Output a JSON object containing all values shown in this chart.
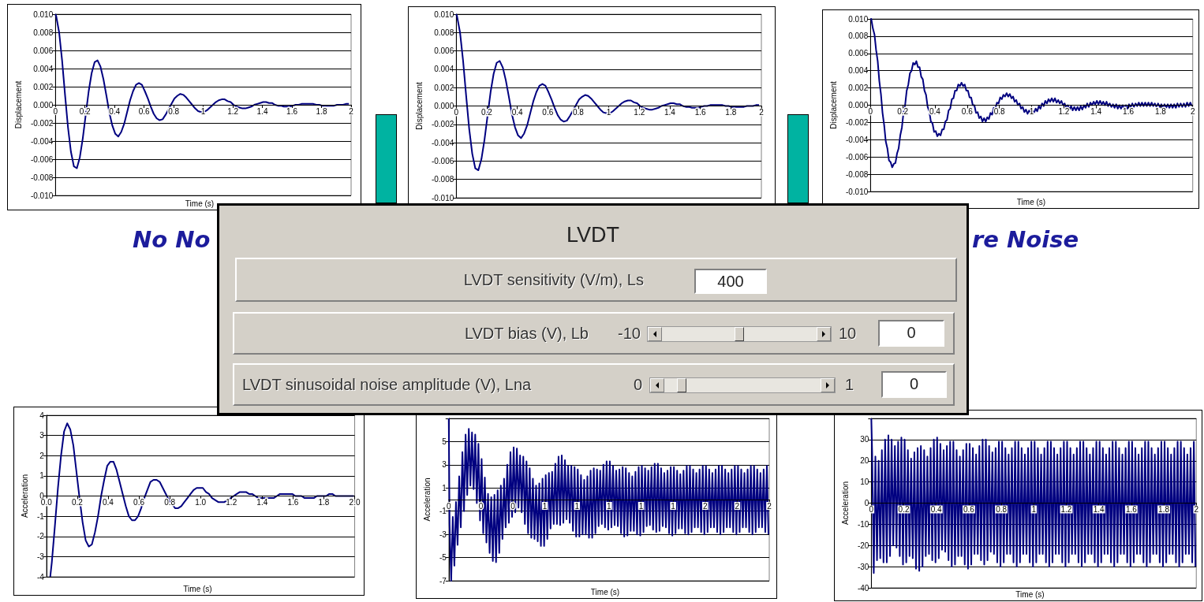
{
  "chart_data": [
    {
      "type": "line",
      "ylabel": "Displacement",
      "xlabel": "Time (s)",
      "annotations": [
        "No No"
      ],
      "grid": "y",
      "xlim": [
        0,
        2
      ],
      "ylim": [
        -0.01,
        0.01
      ],
      "xticks": [
        0,
        0.2,
        0.4,
        0.6,
        0.8,
        1,
        1.2,
        1.4,
        1.6,
        1.8,
        2
      ],
      "yticks": [
        {
          "value": -0.01,
          "label": "-0.010"
        },
        {
          "value": -0.008,
          "label": "-0.008"
        },
        {
          "value": -0.006,
          "label": "-0.006"
        },
        {
          "value": -0.004,
          "label": "-0.004"
        },
        {
          "value": -0.002,
          "label": "-0.002"
        },
        {
          "value": 0,
          "label": "0.000"
        },
        {
          "value": 0.002,
          "label": "0.002"
        },
        {
          "value": 0.004,
          "label": "0.004"
        },
        {
          "value": 0.006,
          "label": "0.006"
        },
        {
          "value": 0.008,
          "label": "0.008"
        },
        {
          "value": 0.01,
          "label": "0.010"
        }
      ],
      "x": [
        0,
        0.005,
        0.025,
        0.045,
        0.065,
        0.085,
        0.105,
        0.125,
        0.145,
        0.165,
        0.185,
        0.205,
        0.225,
        0.245,
        0.265,
        0.285,
        0.305,
        0.325,
        0.345,
        0.365,
        0.385,
        0.405,
        0.425,
        0.445,
        0.465,
        0.485,
        0.505,
        0.525,
        0.545,
        0.565,
        0.585,
        0.605,
        0.625,
        0.645,
        0.665,
        0.685,
        0.705,
        0.725,
        0.745,
        0.765,
        0.785,
        0.805,
        0.825,
        0.845,
        0.865,
        0.885,
        0.905,
        0.925,
        0.945,
        0.965,
        0.985,
        1.005,
        1.025,
        1.045,
        1.065,
        1.085,
        1.105,
        1.125,
        1.145,
        1.165,
        1.185,
        1.205,
        1.225,
        1.245,
        1.265,
        1.285,
        1.305,
        1.325,
        1.345,
        1.365,
        1.385,
        1.405,
        1.425,
        1.445,
        1.465,
        1.485,
        1.505,
        1.525,
        1.545,
        1.565,
        1.585,
        1.605,
        1.625,
        1.645,
        1.665,
        1.685,
        1.705,
        1.725,
        1.745,
        1.765,
        1.785,
        1.805,
        1.825,
        1.845,
        1.865,
        1.885,
        1.905,
        1.925,
        1.945,
        1.965,
        1.985
      ],
      "series": [
        {
          "color": "#000080",
          "values": [
            0.01,
            0.0098,
            0.008,
            0.0049,
            0.0011,
            -0.0025,
            -0.0052,
            -0.0068,
            -0.007,
            -0.0058,
            -0.0037,
            -0.0011,
            0.0015,
            0.0035,
            0.0047,
            0.0049,
            0.0042,
            0.0028,
            0.001,
            -0.0009,
            -0.0023,
            -0.0032,
            -0.0035,
            -0.003,
            -0.0021,
            -0.0008,
            0.0005,
            0.0015,
            0.0022,
            0.0024,
            0.0022,
            0.0015,
            0.0007,
            -0.0002,
            -0.001,
            -0.0015,
            -0.0017,
            -0.0016,
            -0.0011,
            -0.0005,
            0.0001,
            0.0007,
            0.001,
            0.0012,
            0.0011,
            0.0008,
            0.0004,
            0,
            -0.0004,
            -0.0007,
            -0.0008,
            -0.0008,
            -0.0006,
            -0.0003,
            0,
            0.0003,
            0.0005,
            0.0006,
            0.0006,
            0.0004,
            0.0003,
            0,
            -0.0002,
            -0.0003,
            -0.0004,
            -0.0004,
            -0.0003,
            -0.0002,
            0,
            0.0001,
            0.0002,
            0.0003,
            0.0003,
            0.0002,
            0.0002,
            0,
            -0.0001,
            -0.0001,
            -0.0002,
            -0.0002,
            -0.0002,
            -0.0001,
            0,
            0,
            0.0001,
            0.0001,
            0.0001,
            0.0001,
            0.0001,
            0,
            0,
            -0.0001,
            -0.0001,
            -0.0001,
            -0.0001,
            -0.0001,
            0,
            0,
            0,
            0.0001,
            0.0001
          ]
        }
      ]
    },
    {
      "type": "line",
      "ylabel": "Displacement",
      "grid": "y",
      "xlim": [
        0,
        2
      ],
      "ylim": [
        -0.01,
        0.01
      ],
      "xticks": [
        0,
        0.2,
        0.4,
        0.6,
        0.8,
        1,
        1.2,
        1.4,
        1.6,
        1.8,
        2
      ],
      "yticks": [
        {
          "value": -0.01,
          "label": "-0.010"
        },
        {
          "value": -0.008,
          "label": "-0.008"
        },
        {
          "value": -0.006,
          "label": "-0.006"
        },
        {
          "value": -0.004,
          "label": "-0.004"
        },
        {
          "value": -0.002,
          "label": "-0.002"
        },
        {
          "value": 0,
          "label": "0.000"
        },
        {
          "value": 0.002,
          "label": "0.002"
        },
        {
          "value": 0.004,
          "label": "0.004"
        },
        {
          "value": 0.006,
          "label": "0.006"
        },
        {
          "value": 0.008,
          "label": "0.008"
        },
        {
          "value": 0.01,
          "label": "0.010"
        }
      ],
      "x": [
        0,
        0.005,
        0.025,
        0.045,
        0.065,
        0.085,
        0.105,
        0.125,
        0.145,
        0.165,
        0.185,
        0.205,
        0.225,
        0.245,
        0.265,
        0.285,
        0.305,
        0.325,
        0.345,
        0.365,
        0.385,
        0.405,
        0.425,
        0.445,
        0.465,
        0.485,
        0.505,
        0.525,
        0.545,
        0.565,
        0.585,
        0.605,
        0.625,
        0.645,
        0.665,
        0.685,
        0.705,
        0.725,
        0.745,
        0.765,
        0.785,
        0.805,
        0.825,
        0.845,
        0.865,
        0.885,
        0.905,
        0.925,
        0.945,
        0.965,
        0.985,
        1.005,
        1.025,
        1.045,
        1.065,
        1.085,
        1.105,
        1.125,
        1.145,
        1.165,
        1.185,
        1.205,
        1.225,
        1.245,
        1.265,
        1.285,
        1.305,
        1.325,
        1.345,
        1.365,
        1.385,
        1.405,
        1.425,
        1.445,
        1.465,
        1.485,
        1.505,
        1.525,
        1.545,
        1.565,
        1.585,
        1.605,
        1.625,
        1.645,
        1.665,
        1.685,
        1.705,
        1.725,
        1.745,
        1.765,
        1.785,
        1.805,
        1.825,
        1.845,
        1.865,
        1.885,
        1.905,
        1.925,
        1.945,
        1.965,
        1.985
      ],
      "series": [
        {
          "color": "#000080",
          "values": [
            0.01,
            0.0098,
            0.008,
            0.0049,
            0.0011,
            -0.0025,
            -0.0052,
            -0.0068,
            -0.007,
            -0.0058,
            -0.0037,
            -0.0011,
            0.0015,
            0.0035,
            0.0047,
            0.0049,
            0.0042,
            0.0028,
            0.001,
            -0.0009,
            -0.0023,
            -0.0032,
            -0.0035,
            -0.003,
            -0.0021,
            -0.0008,
            0.0005,
            0.0015,
            0.0022,
            0.0024,
            0.0022,
            0.0015,
            0.0007,
            -0.0002,
            -0.001,
            -0.0015,
            -0.0017,
            -0.0016,
            -0.0011,
            -0.0005,
            0.0001,
            0.0007,
            0.001,
            0.0012,
            0.0011,
            0.0008,
            0.0004,
            0,
            -0.0004,
            -0.0007,
            -0.0008,
            -0.0008,
            -0.0006,
            -0.0003,
            0,
            0.0003,
            0.0005,
            0.0006,
            0.0006,
            0.0004,
            0.0003,
            0,
            -0.0002,
            -0.0003,
            -0.0004,
            -0.0004,
            -0.0003,
            -0.0002,
            0,
            0.0001,
            0.0002,
            0.0003,
            0.0003,
            0.0002,
            0.0002,
            0,
            -0.0001,
            -0.0001,
            -0.0002,
            -0.0002,
            -0.0002,
            -0.0001,
            0,
            0,
            0.0001,
            0.0001,
            0.0001,
            0.0001,
            0.0001,
            0,
            0,
            -0.0001,
            -0.0001,
            -0.0001,
            -0.0001,
            -0.0001,
            0,
            0,
            0,
            0.0001,
            0.0001
          ]
        }
      ]
    },
    {
      "type": "line",
      "ylabel": "Displacement",
      "xlabel": "Time (s)",
      "annotations": [
        "re Noise"
      ],
      "grid": "y",
      "xlim": [
        0,
        2
      ],
      "ylim": [
        -0.01,
        0.01
      ],
      "xticks": [
        0,
        0.2,
        0.4,
        0.6,
        0.8,
        1,
        1.2,
        1.4,
        1.6,
        1.8,
        2
      ],
      "yticks": [
        {
          "value": -0.01,
          "label": "-0.010"
        },
        {
          "value": -0.008,
          "label": "-0.008"
        },
        {
          "value": -0.006,
          "label": "-0.006"
        },
        {
          "value": -0.004,
          "label": "-0.004"
        },
        {
          "value": -0.002,
          "label": "-0.002"
        },
        {
          "value": 0,
          "label": "0.000"
        },
        {
          "value": 0.002,
          "label": "0.002"
        },
        {
          "value": 0.004,
          "label": "0.004"
        },
        {
          "value": 0.006,
          "label": "0.006"
        },
        {
          "value": 0.008,
          "label": "0.008"
        },
        {
          "value": 0.01,
          "label": "0.010"
        }
      ],
      "x": [
        0,
        0.005,
        0.015,
        0.025,
        0.035,
        0.045,
        0.055,
        0.065,
        0.075,
        0.085,
        0.095,
        0.105,
        0.115,
        0.125,
        0.135,
        0.145,
        0.155,
        0.165,
        0.175,
        0.185,
        0.195,
        0.205,
        0.215,
        0.225,
        0.235,
        0.245,
        0.255,
        0.265,
        0.275,
        0.285,
        0.295,
        0.305,
        0.315,
        0.325,
        0.335,
        0.345,
        0.355,
        0.365,
        0.375,
        0.385,
        0.395,
        0.405,
        0.415,
        0.425,
        0.435,
        0.445,
        0.455,
        0.465,
        0.475,
        0.485,
        0.495,
        0.505,
        0.515,
        0.525,
        0.535,
        0.545,
        0.555,
        0.565,
        0.575,
        0.585,
        0.595,
        0.605,
        0.615,
        0.625,
        0.635,
        0.645,
        0.655,
        0.665,
        0.675,
        0.685,
        0.695,
        0.705,
        0.715,
        0.725,
        0.735,
        0.745,
        0.755,
        0.765,
        0.775,
        0.785,
        0.795,
        0.805,
        0.815,
        0.825,
        0.835,
        0.845,
        0.855,
        0.865,
        0.875,
        0.885,
        0.895,
        0.905,
        0.915,
        0.925,
        0.935,
        0.945,
        0.955,
        0.965,
        0.975,
        0.985,
        0.995,
        1.005,
        1.015,
        1.025,
        1.035,
        1.045,
        1.055,
        1.065,
        1.075,
        1.085,
        1.095,
        1.105,
        1.115,
        1.125,
        1.135,
        1.145,
        1.155,
        1.165,
        1.175,
        1.185,
        1.195,
        1.205,
        1.215,
        1.225,
        1.235,
        1.245,
        1.255,
        1.265,
        1.275,
        1.285,
        1.295,
        1.305,
        1.315,
        1.325,
        1.335,
        1.345,
        1.355,
        1.365,
        1.375,
        1.385,
        1.395,
        1.405,
        1.415,
        1.425,
        1.435,
        1.445,
        1.455,
        1.465,
        1.475,
        1.485,
        1.495,
        1.505,
        1.515,
        1.525,
        1.535,
        1.545,
        1.555,
        1.565,
        1.575,
        1.585,
        1.595,
        1.605,
        1.615,
        1.625,
        1.635,
        1.645,
        1.655,
        1.665,
        1.675,
        1.685,
        1.695,
        1.705,
        1.715,
        1.725,
        1.735,
        1.745,
        1.755,
        1.765,
        1.775,
        1.785,
        1.795,
        1.805,
        1.815,
        1.825,
        1.835,
        1.845,
        1.855,
        1.865,
        1.875,
        1.885,
        1.895,
        1.905,
        1.915,
        1.925,
        1.935,
        1.945,
        1.955,
        1.965,
        1.975,
        1.985,
        1.995
      ],
      "series": [
        {
          "color": "#000080",
          "values": [
            0.01,
            0.01,
            0.0089,
            0.0082,
            0.0064,
            0.0051,
            0.0028,
            0.0013,
            -0.0009,
            -0.0023,
            -0.0042,
            -0.005,
            -0.0064,
            -0.0066,
            -0.0072,
            -0.0068,
            -0.0067,
            -0.0056,
            -0.005,
            -0.0035,
            -0.0026,
            -0.0009,
            0,
            0.0017,
            0.0024,
            0.0037,
            0.004,
            0.0049,
            0.0047,
            0.0051,
            0.0044,
            0.0044,
            0.0033,
            0.003,
            0.0017,
            0.0012,
            -0.0002,
            -0.0007,
            -0.0019,
            -0.0021,
            -0.0031,
            -0.003,
            -0.0036,
            -0.0033,
            -0.0035,
            -0.0028,
            -0.0028,
            -0.0019,
            -0.0017,
            -0.0006,
            -0.0004,
            0.0007,
            0.0008,
            0.0017,
            0.0017,
            0.0024,
            0.0022,
            0.0026,
            0.0022,
            0.0024,
            0.0017,
            0.0017,
            0.0009,
            0.0009,
            0,
            0,
            -0.0009,
            -0.0008,
            -0.0015,
            -0.0013,
            -0.0019,
            -0.0015,
            -0.0019,
            -0.0014,
            -0.0016,
            -0.0009,
            -0.0011,
            -0.0003,
            -0.0004,
            0.0003,
            0.0002,
            0.0009,
            0.0007,
            0.0012,
            0.001,
            0.0014,
            0.001,
            0.0013,
            0.0008,
            0.001,
            0.0004,
            0.0006,
            0,
            0.0002,
            -0.0004,
            -0.0002,
            -0.0008,
            -0.0005,
            -0.001,
            -0.0006,
            -0.001,
            -0.0006,
            -0.0009,
            -0.0004,
            -0.0007,
            -0.0001,
            -0.0004,
            0.0002,
            -0.0001,
            0.0005,
            0.0002,
            0.0007,
            0.0004,
            0.0008,
            0.0004,
            0.0008,
            0.0003,
            0.0006,
            0.0002,
            0.0005,
            0,
            0.0002,
            -0.0003,
            0,
            -0.0005,
            -0.0001,
            -0.0006,
            -0.0002,
            -0.0006,
            -0.0002,
            -0.0006,
            -0.0001,
            -0.0005,
            0,
            -0.0003,
            0.0002,
            -0.0002,
            0.0003,
            0,
            0.0004,
            0.0001,
            0.0005,
            0.0001,
            0.0005,
            0.0001,
            0.0004,
            0,
            0.0004,
            -0.0001,
            0.0002,
            -0.0002,
            0.0001,
            -0.0003,
            0.0001,
            -0.0004,
            0,
            -0.0004,
            0,
            -0.0004,
            0,
            -0.0004,
            0.0001,
            -0.0003,
            0.0002,
            -0.0002,
            0.0002,
            -0.0001,
            0.0003,
            -0.0001,
            0.0003,
            -0.0001,
            0.0003,
            -0.0001,
            0.0003,
            -0.0001,
            0.0003,
            -0.0001,
            0.0002,
            -0.0002,
            0.0002,
            -0.0002,
            0.0001,
            -0.0003,
            0.0001,
            -0.0003,
            0.0001,
            -0.0003,
            0.0001,
            -0.0003,
            0.0001,
            -0.0003,
            0.0002,
            -0.0002,
            0.0002,
            -0.0002,
            0.0002,
            -0.0002,
            0.0003,
            -0.0001,
            0.0003,
            -0.0001
          ]
        }
      ]
    },
    {
      "type": "other",
      "title": "LVDT",
      "annotations": [
        "LVDT sensitivity (V/m), Ls",
        "400",
        "LVDT bias (V), Lb",
        "-10",
        "10",
        "0",
        "LVDT sinusoidal noise amplitude (V), Lna",
        "0",
        "1",
        "0"
      ]
    },
    {
      "type": "line",
      "ylabel": "Acceleration",
      "xlabel": "Time (s)",
      "grid": "y",
      "xlim": [
        0,
        2
      ],
      "ylim": [
        -4,
        4
      ],
      "xticks": [
        {
          "value": 0,
          "label": "0.0"
        },
        {
          "value": 0.2,
          "label": "0.2"
        },
        {
          "value": 0.4,
          "label": "0.4"
        },
        {
          "value": 0.6,
          "label": "0.6"
        },
        {
          "value": 0.8,
          "label": "0.8"
        },
        {
          "value": 1,
          "label": "1.0"
        },
        {
          "value": 1.2,
          "label": "1.2"
        },
        {
          "value": 1.4,
          "label": "1.4"
        },
        {
          "value": 1.6,
          "label": "1.6"
        },
        {
          "value": 1.8,
          "label": "1.8"
        },
        {
          "value": 2,
          "label": "2.0"
        }
      ],
      "yticks": [
        -4,
        -3,
        -2,
        -1,
        0,
        1,
        2,
        3,
        4
      ],
      "x": [
        0.025,
        0.035,
        0.055,
        0.075,
        0.095,
        0.115,
        0.135,
        0.155,
        0.175,
        0.195,
        0.215,
        0.235,
        0.255,
        0.275,
        0.295,
        0.315,
        0.335,
        0.355,
        0.375,
        0.395,
        0.415,
        0.435,
        0.455,
        0.475,
        0.495,
        0.515,
        0.535,
        0.555,
        0.575,
        0.595,
        0.615,
        0.635,
        0.655,
        0.675,
        0.695,
        0.715,
        0.735,
        0.755,
        0.775,
        0.795,
        0.815,
        0.835,
        0.855,
        0.875,
        0.895,
        0.915,
        0.935,
        0.955,
        0.975,
        0.995,
        1.015,
        1.035,
        1.055,
        1.075,
        1.095,
        1.115,
        1.135,
        1.155,
        1.175,
        1.195,
        1.215,
        1.235,
        1.255,
        1.275,
        1.295,
        1.315,
        1.335,
        1.355,
        1.375,
        1.395,
        1.415,
        1.435,
        1.455,
        1.475,
        1.495,
        1.515,
        1.535,
        1.555,
        1.575,
        1.595,
        1.615,
        1.635,
        1.655,
        1.675,
        1.695,
        1.715,
        1.735,
        1.755,
        1.775,
        1.795,
        1.815,
        1.835,
        1.855,
        1.875,
        1.895,
        1.915,
        1.935,
        1.955,
        1.975,
        1.995
      ],
      "series": [
        {
          "color": "#000080",
          "values": [
            -4,
            -3.3,
            -1.5,
            0.4,
            2.0,
            3.2,
            3.6,
            3.3,
            2.5,
            1.2,
            -0.1,
            -1.3,
            -2.2,
            -2.5,
            -2.4,
            -1.8,
            -1.0,
            0.0,
            0.8,
            1.5,
            1.7,
            1.7,
            1.3,
            0.7,
            0.1,
            -0.5,
            -1.0,
            -1.2,
            -1.2,
            -1.0,
            -0.6,
            -0.1,
            0.3,
            0.7,
            0.8,
            0.8,
            0.7,
            0.4,
            0.1,
            -0.2,
            -0.4,
            -0.6,
            -0.6,
            -0.5,
            -0.3,
            -0.1,
            0.1,
            0.3,
            0.4,
            0.4,
            0.4,
            0.2,
            0.1,
            -0.1,
            -0.2,
            -0.3,
            -0.3,
            -0.3,
            -0.2,
            -0.1,
            0.0,
            0.1,
            0.2,
            0.2,
            0.2,
            0.1,
            0.1,
            0.0,
            -0.1,
            -0.1,
            -0.1,
            -0.1,
            -0.1,
            -0.1,
            0.0,
            0.1,
            0.1,
            0.1,
            0.1,
            0.1,
            0.0,
            0.0,
            0.0,
            -0.1,
            -0.1,
            -0.1,
            -0.1,
            0.0,
            0.0,
            0.0,
            0.0,
            0.1,
            0.1,
            0.0,
            0.0,
            0.0,
            0.0,
            0.0,
            0.0,
            0.0
          ]
        }
      ]
    },
    {
      "type": "line",
      "ylabel": "Acceleration",
      "xlabel": "Time (s)",
      "grid": "y",
      "xlim": [
        0,
        2
      ],
      "ylim": [
        -7,
        7
      ],
      "xticks": [
        {
          "value": 0,
          "label": "0"
        },
        {
          "value": 0.2,
          "label": "0"
        },
        {
          "value": 0.4,
          "label": "0"
        },
        {
          "value": 0.6,
          "label": "1"
        },
        {
          "value": 0.8,
          "label": "1"
        },
        {
          "value": 1,
          "label": "1"
        },
        {
          "value": 1.2,
          "label": "1"
        },
        {
          "value": 1.4,
          "label": "1"
        },
        {
          "value": 1.6,
          "label": "2"
        },
        {
          "value": 1.8,
          "label": "2"
        },
        {
          "value": 2,
          "label": "2"
        }
      ],
      "yticks": [
        -7,
        -5,
        -3,
        -1,
        1,
        3,
        5,
        {
          "value": 7,
          "label": null
        }
      ],
      "x": [
        0,
        0.005,
        0.015,
        0.025,
        0.035,
        0.045,
        0.055,
        0.065,
        0.075,
        0.085,
        0.095,
        0.105,
        0.115,
        0.125,
        0.135,
        0.145,
        0.155,
        0.165,
        0.175,
        0.185,
        0.195,
        0.205,
        0.215,
        0.225,
        0.235,
        0.245,
        0.255,
        0.265,
        0.275,
        0.285,
        0.295,
        0.305,
        0.315,
        0.325,
        0.335,
        0.345,
        0.355,
        0.365,
        0.375,
        0.385,
        0.395,
        0.405,
        0.415,
        0.425,
        0.435,
        0.445,
        0.455,
        0.465,
        0.475,
        0.485,
        0.495,
        0.505,
        0.515,
        0.525,
        0.535,
        0.545,
        0.555,
        0.565,
        0.575,
        0.585,
        0.595,
        0.605,
        0.615,
        0.625,
        0.635,
        0.645,
        0.655,
        0.665,
        0.675,
        0.685,
        0.695,
        0.705,
        0.715,
        0.725,
        0.735,
        0.745,
        0.755,
        0.765,
        0.775,
        0.785,
        0.795,
        0.805,
        0.815,
        0.825,
        0.835,
        0.845,
        0.855,
        0.865,
        0.875,
        0.885,
        0.895,
        0.905,
        0.915,
        0.925,
        0.935,
        0.945,
        0.955,
        0.965,
        0.975,
        0.985,
        0.995,
        1.005,
        1.015,
        1.025,
        1.035,
        1.045,
        1.055,
        1.065,
        1.075,
        1.085,
        1.095,
        1.105,
        1.115,
        1.125,
        1.135,
        1.145,
        1.155,
        1.165,
        1.175,
        1.185,
        1.195,
        1.205,
        1.215,
        1.225,
        1.235,
        1.245,
        1.255,
        1.265,
        1.275,
        1.285,
        1.295,
        1.305,
        1.315,
        1.325,
        1.335,
        1.345,
        1.355,
        1.365,
        1.375,
        1.385,
        1.395,
        1.405,
        1.415,
        1.425,
        1.435,
        1.445,
        1.455,
        1.465,
        1.475,
        1.485,
        1.495,
        1.505,
        1.515,
        1.525,
        1.535,
        1.545,
        1.555,
        1.565,
        1.575,
        1.585,
        1.595,
        1.605,
        1.615,
        1.625,
        1.635,
        1.645,
        1.655,
        1.665,
        1.675,
        1.685,
        1.695,
        1.705,
        1.715,
        1.725,
        1.735,
        1.745,
        1.755,
        1.765,
        1.775,
        1.785,
        1.795,
        1.805,
        1.815,
        1.825,
        1.835,
        1.845,
        1.855,
        1.865,
        1.875,
        1.885,
        1.895,
        1.905,
        1.915,
        1.925,
        1.935,
        1.945,
        1.955,
        1.965,
        1.975,
        1.985,
        1.995
      ],
      "series": [
        {
          "color": "#000080",
          "values": [
            7,
            -2.1,
            -7,
            -1.5,
            -5.7,
            -0.2,
            -3.9,
            2.0,
            -2.4,
            4.1,
            -1.0,
            5.6,
            0.4,
            6.1,
            1.2,
            5.8,
            0.9,
            5.6,
            -0.3,
            4.8,
            -1.8,
            3.5,
            -2.9,
            1.9,
            -3.7,
            0.5,
            -4.6,
            0.2,
            -5.3,
            0.4,
            -5.4,
            0.8,
            -4.6,
            1.2,
            -3.4,
            1.8,
            -2.4,
            3.0,
            -2.0,
            4.1,
            -1.5,
            4.5,
            -1.1,
            4.4,
            -0.7,
            3.8,
            -1.1,
            3.7,
            -2.1,
            3.3,
            -2.9,
            2.7,
            -3.3,
            1.8,
            -3.4,
            1.2,
            -3.6,
            1.4,
            -4.0,
            1.8,
            -4.0,
            2.1,
            -3.4,
            2.3,
            -2.5,
            2.4,
            -2.1,
            3.1,
            -2.1,
            3.7,
            -2.2,
            3.8,
            -2.0,
            3.4,
            -1.7,
            2.9,
            -2.0,
            2.9,
            -2.7,
            2.8,
            -3.2,
            2.6,
            -3.2,
            2.1,
            -3.0,
            1.7,
            -3.0,
            2.0,
            -3.3,
            2.5,
            -3.3,
            2.7,
            -2.9,
            2.6,
            -2.3,
            2.5,
            -2.1,
            3.0,
            -2.4,
            3.3,
            -2.6,
            3.3,
            -2.4,
            2.9,
            -2.2,
            2.5,
            -2.3,
            2.6,
            -2.9,
            2.8,
            -3.2,
            2.7,
            -3.1,
            2.3,
            -2.7,
            2.0,
            -2.7,
            2.4,
            -3.0,
            2.8,
            -3.1,
            2.9,
            -2.8,
            2.7,
            -2.3,
            2.5,
            -2.2,
            2.8,
            -2.6,
            3.1,
            -2.8,
            3.1,
            -2.7,
            2.7,
            -2.3,
            2.3,
            -2.4,
            2.5,
            -2.9,
            2.8,
            -3.1,
            2.8,
            -2.9,
            2.5,
            -2.5,
            2.2,
            -2.5,
            2.5,
            -2.9,
            2.9,
            -3.0,
            2.9,
            -2.8,
            2.6,
            -2.4,
            2.3,
            -2.4,
            2.6,
            -2.8,
            2.9,
            -3.0,
            2.9,
            -2.8,
            2.6,
            -2.4,
            2.3,
            -2.4,
            2.6,
            -2.8,
            2.9,
            -3.0,
            2.9,
            -2.8,
            2.6,
            -2.4,
            2.3,
            -2.4,
            2.6,
            -2.8,
            2.9,
            -3.0,
            2.9,
            -2.8,
            2.6,
            -2.4,
            2.3,
            -2.4,
            2.6,
            -2.8,
            2.9,
            -3.0,
            2.9,
            -2.8,
            2.6,
            -2.4,
            2.3,
            -2.4,
            2.6,
            -2.8,
            2.9,
            -3.0
          ]
        }
      ]
    },
    {
      "type": "line",
      "ylabel": "Acceleration",
      "xlabel": "Time (s)",
      "grid": "y",
      "xlim": [
        0,
        2
      ],
      "ylim": [
        -40,
        40
      ],
      "xticks": [
        0,
        0.2,
        0.4,
        0.6,
        0.8,
        1,
        1.2,
        1.4,
        1.6,
        1.8,
        2
      ],
      "yticks": [
        -40,
        -30,
        -20,
        -10,
        0,
        10,
        20,
        30,
        {
          "value": 40,
          "label": null
        }
      ],
      "x": [
        0,
        0.005,
        0.015,
        0.025,
        0.035,
        0.045,
        0.055,
        0.065,
        0.075,
        0.085,
        0.095,
        0.105,
        0.115,
        0.125,
        0.135,
        0.145,
        0.155,
        0.165,
        0.175,
        0.185,
        0.195,
        0.205,
        0.215,
        0.225,
        0.235,
        0.245,
        0.255,
        0.265,
        0.275,
        0.285,
        0.295,
        0.305,
        0.315,
        0.325,
        0.335,
        0.345,
        0.355,
        0.365,
        0.375,
        0.385,
        0.395,
        0.405,
        0.415,
        0.425,
        0.435,
        0.445,
        0.455,
        0.465,
        0.475,
        0.485,
        0.495,
        0.505,
        0.515,
        0.525,
        0.535,
        0.545,
        0.555,
        0.565,
        0.575,
        0.585,
        0.595,
        0.605,
        0.615,
        0.625,
        0.635,
        0.645,
        0.655,
        0.665,
        0.675,
        0.685,
        0.695,
        0.705,
        0.715,
        0.725,
        0.735,
        0.745,
        0.755,
        0.765,
        0.775,
        0.785,
        0.795,
        0.805,
        0.815,
        0.825,
        0.835,
        0.845,
        0.855,
        0.865,
        0.875,
        0.885,
        0.895,
        0.905,
        0.915,
        0.925,
        0.935,
        0.945,
        0.955,
        0.965,
        0.975,
        0.985,
        0.995,
        1.005,
        1.015,
        1.025,
        1.035,
        1.045,
        1.055,
        1.065,
        1.075,
        1.085,
        1.095,
        1.105,
        1.115,
        1.125,
        1.135,
        1.145,
        1.155,
        1.165,
        1.175,
        1.185,
        1.195,
        1.205,
        1.215,
        1.225,
        1.235,
        1.245,
        1.255,
        1.265,
        1.275,
        1.285,
        1.295,
        1.305,
        1.315,
        1.325,
        1.335,
        1.345,
        1.355,
        1.365,
        1.375,
        1.385,
        1.395,
        1.405,
        1.415,
        1.425,
        1.435,
        1.445,
        1.455,
        1.465,
        1.475,
        1.485,
        1.495,
        1.505,
        1.515,
        1.525,
        1.535,
        1.545,
        1.555,
        1.565,
        1.575,
        1.585,
        1.595,
        1.605,
        1.615,
        1.625,
        1.635,
        1.645,
        1.655,
        1.665,
        1.675,
        1.685,
        1.695,
        1.705,
        1.715,
        1.725,
        1.735,
        1.745,
        1.755,
        1.765,
        1.775,
        1.785,
        1.795,
        1.805,
        1.815,
        1.825,
        1.835,
        1.845,
        1.855,
        1.865,
        1.875,
        1.885,
        1.895,
        1.905,
        1.915,
        1.925,
        1.935,
        1.945,
        1.955,
        1.965,
        1.975,
        1.985,
        1.995
      ],
      "series": [
        {
          "color": "#000080",
          "values": [
            40,
            24,
            -33,
            22,
            -27,
            20,
            -26,
            25,
            -28,
            30,
            -28,
            32,
            -25,
            30,
            -20,
            27,
            -21,
            29,
            -25,
            31,
            -29,
            30,
            -28,
            25,
            -25,
            21,
            -26,
            24,
            -31,
            26,
            -32,
            27,
            -30,
            25,
            -25,
            22,
            -24,
            26,
            -27,
            30,
            -28,
            31,
            -26,
            28,
            -22,
            25,
            -23,
            27,
            -27,
            29,
            -30,
            29,
            -29,
            25,
            -25,
            22,
            -25,
            25,
            -29,
            28,
            -31,
            28,
            -29,
            26,
            -24,
            23,
            -24,
            27,
            -27,
            30,
            -29,
            30,
            -27,
            27,
            -23,
            24,
            -24,
            26,
            -28,
            29,
            -30,
            29,
            -28,
            26,
            -24,
            23,
            -24,
            26,
            -28,
            29,
            -30,
            29,
            -28,
            26,
            -24,
            23,
            -24,
            26,
            -28,
            29,
            -30,
            29,
            -28,
            26,
            -24,
            23,
            -24,
            26,
            -28,
            29,
            -30,
            29,
            -28,
            26,
            -24,
            23,
            -24,
            26,
            -28,
            29,
            -30,
            29,
            -28,
            26,
            -24,
            23,
            -24,
            26,
            -28,
            29,
            -30,
            29,
            -28,
            26,
            -24,
            23,
            -24,
            26,
            -28,
            29,
            -30,
            29,
            -28,
            26,
            -24,
            23,
            -24,
            26,
            -28,
            29,
            -30,
            29,
            -28,
            26,
            -24,
            23,
            -24,
            26,
            -28,
            29,
            -30,
            29,
            -28,
            26,
            -24,
            23,
            -24,
            26,
            -28,
            29,
            -30,
            29,
            -28,
            26,
            -24,
            23,
            -24,
            26,
            -28,
            29,
            -30,
            29,
            -28,
            26,
            -24,
            23,
            -24,
            26,
            -28,
            29,
            -30,
            29,
            -28,
            26,
            -24,
            23,
            -24,
            26,
            -28,
            29,
            -30
          ]
        }
      ]
    }
  ]
}
